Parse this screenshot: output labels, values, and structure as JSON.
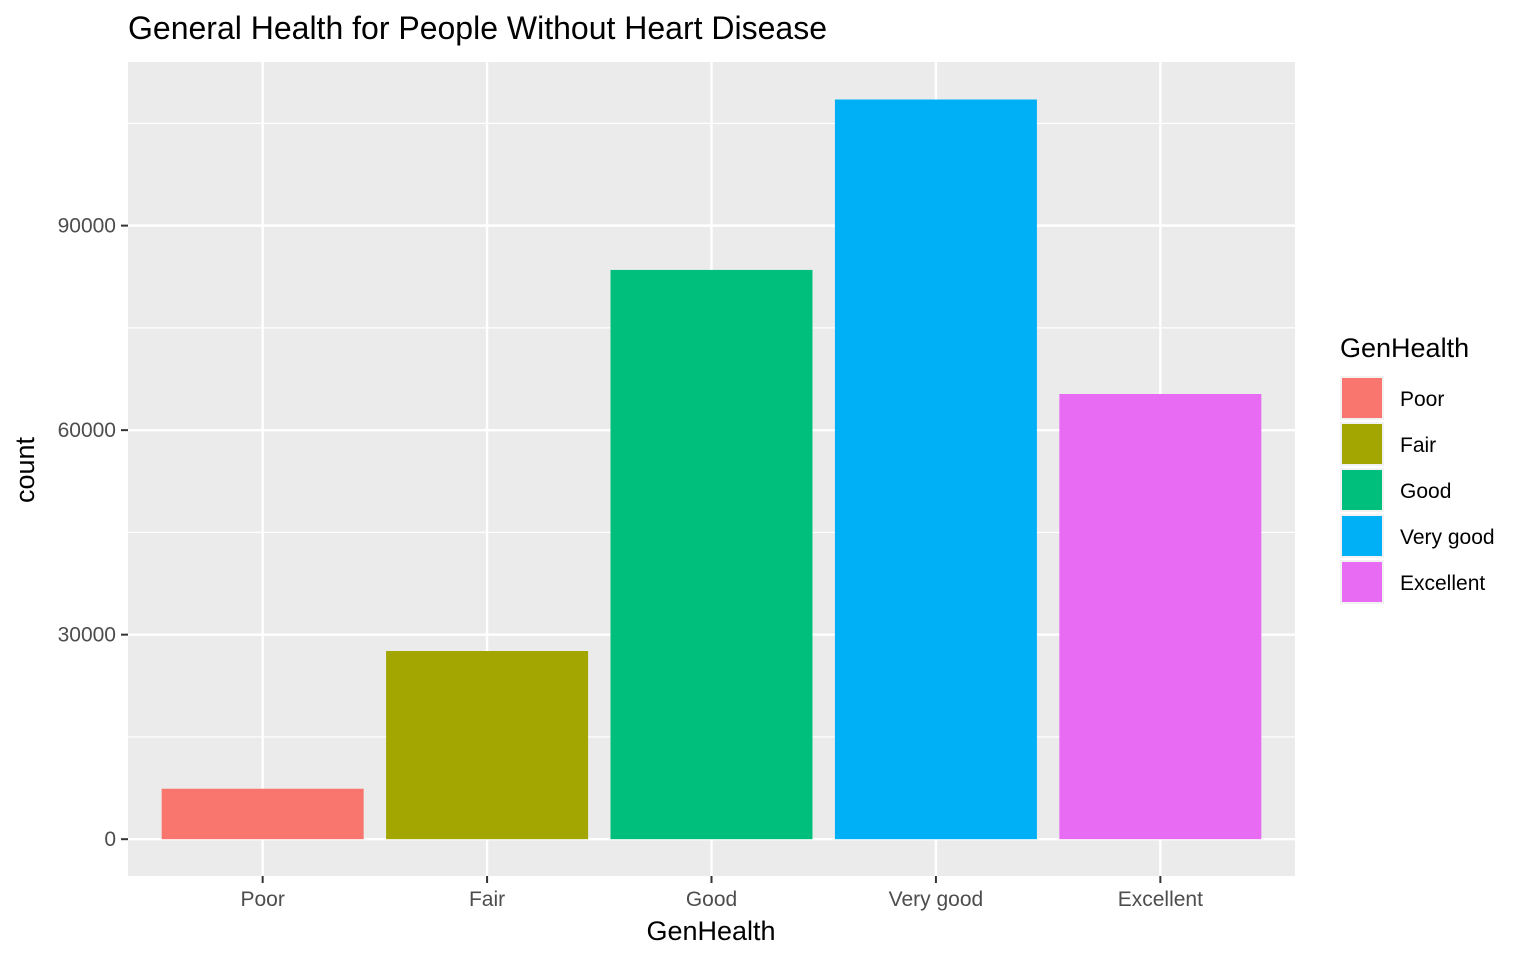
{
  "chart_data": {
    "type": "bar",
    "title": "General Health for People Without Heart Disease",
    "xlabel": "GenHealth",
    "ylabel": "count",
    "categories": [
      "Poor",
      "Fair",
      "Good",
      "Very good",
      "Excellent"
    ],
    "values": [
      7400,
      27600,
      83500,
      108500,
      65300
    ],
    "colors": [
      "#F8766D",
      "#A3A500",
      "#00BF7D",
      "#00B0F6",
      "#E76BF3"
    ],
    "ylim": [
      -5400,
      114000
    ],
    "yticks": [
      0,
      30000,
      60000,
      90000
    ],
    "yticks_labels": [
      "0",
      "30000",
      "60000",
      "90000"
    ],
    "grid": true,
    "legend": {
      "title": "GenHealth",
      "position": "right",
      "entries": [
        "Poor",
        "Fair",
        "Good",
        "Very good",
        "Excellent"
      ]
    },
    "panel_background": "#EBEBEB",
    "grid_color": "#FFFFFF"
  }
}
